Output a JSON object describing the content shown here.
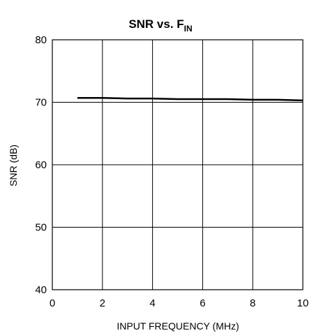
{
  "chart_data": {
    "type": "line",
    "title": "SNR vs. F",
    "title_subscript": "IN",
    "xlabel": "INPUT FREQUENCY (MHz)",
    "ylabel": "SNR (dB)",
    "xlim": [
      0,
      10
    ],
    "ylim": [
      40,
      80
    ],
    "x_ticks": [
      0,
      2,
      4,
      6,
      8,
      10
    ],
    "y_ticks": [
      40,
      50,
      60,
      70,
      80
    ],
    "x_tick_labels": [
      "0",
      "2",
      "4",
      "6",
      "8",
      "10"
    ],
    "y_tick_labels": [
      "40",
      "50",
      "60",
      "70",
      "80"
    ],
    "grid": true,
    "series": [
      {
        "x": [
          1,
          2,
          3,
          4,
          5,
          6,
          7,
          8,
          9,
          10
        ],
        "y": [
          70.7,
          70.7,
          70.6,
          70.6,
          70.5,
          70.5,
          70.5,
          70.4,
          70.4,
          70.3
        ],
        "color": "#000000"
      }
    ]
  }
}
